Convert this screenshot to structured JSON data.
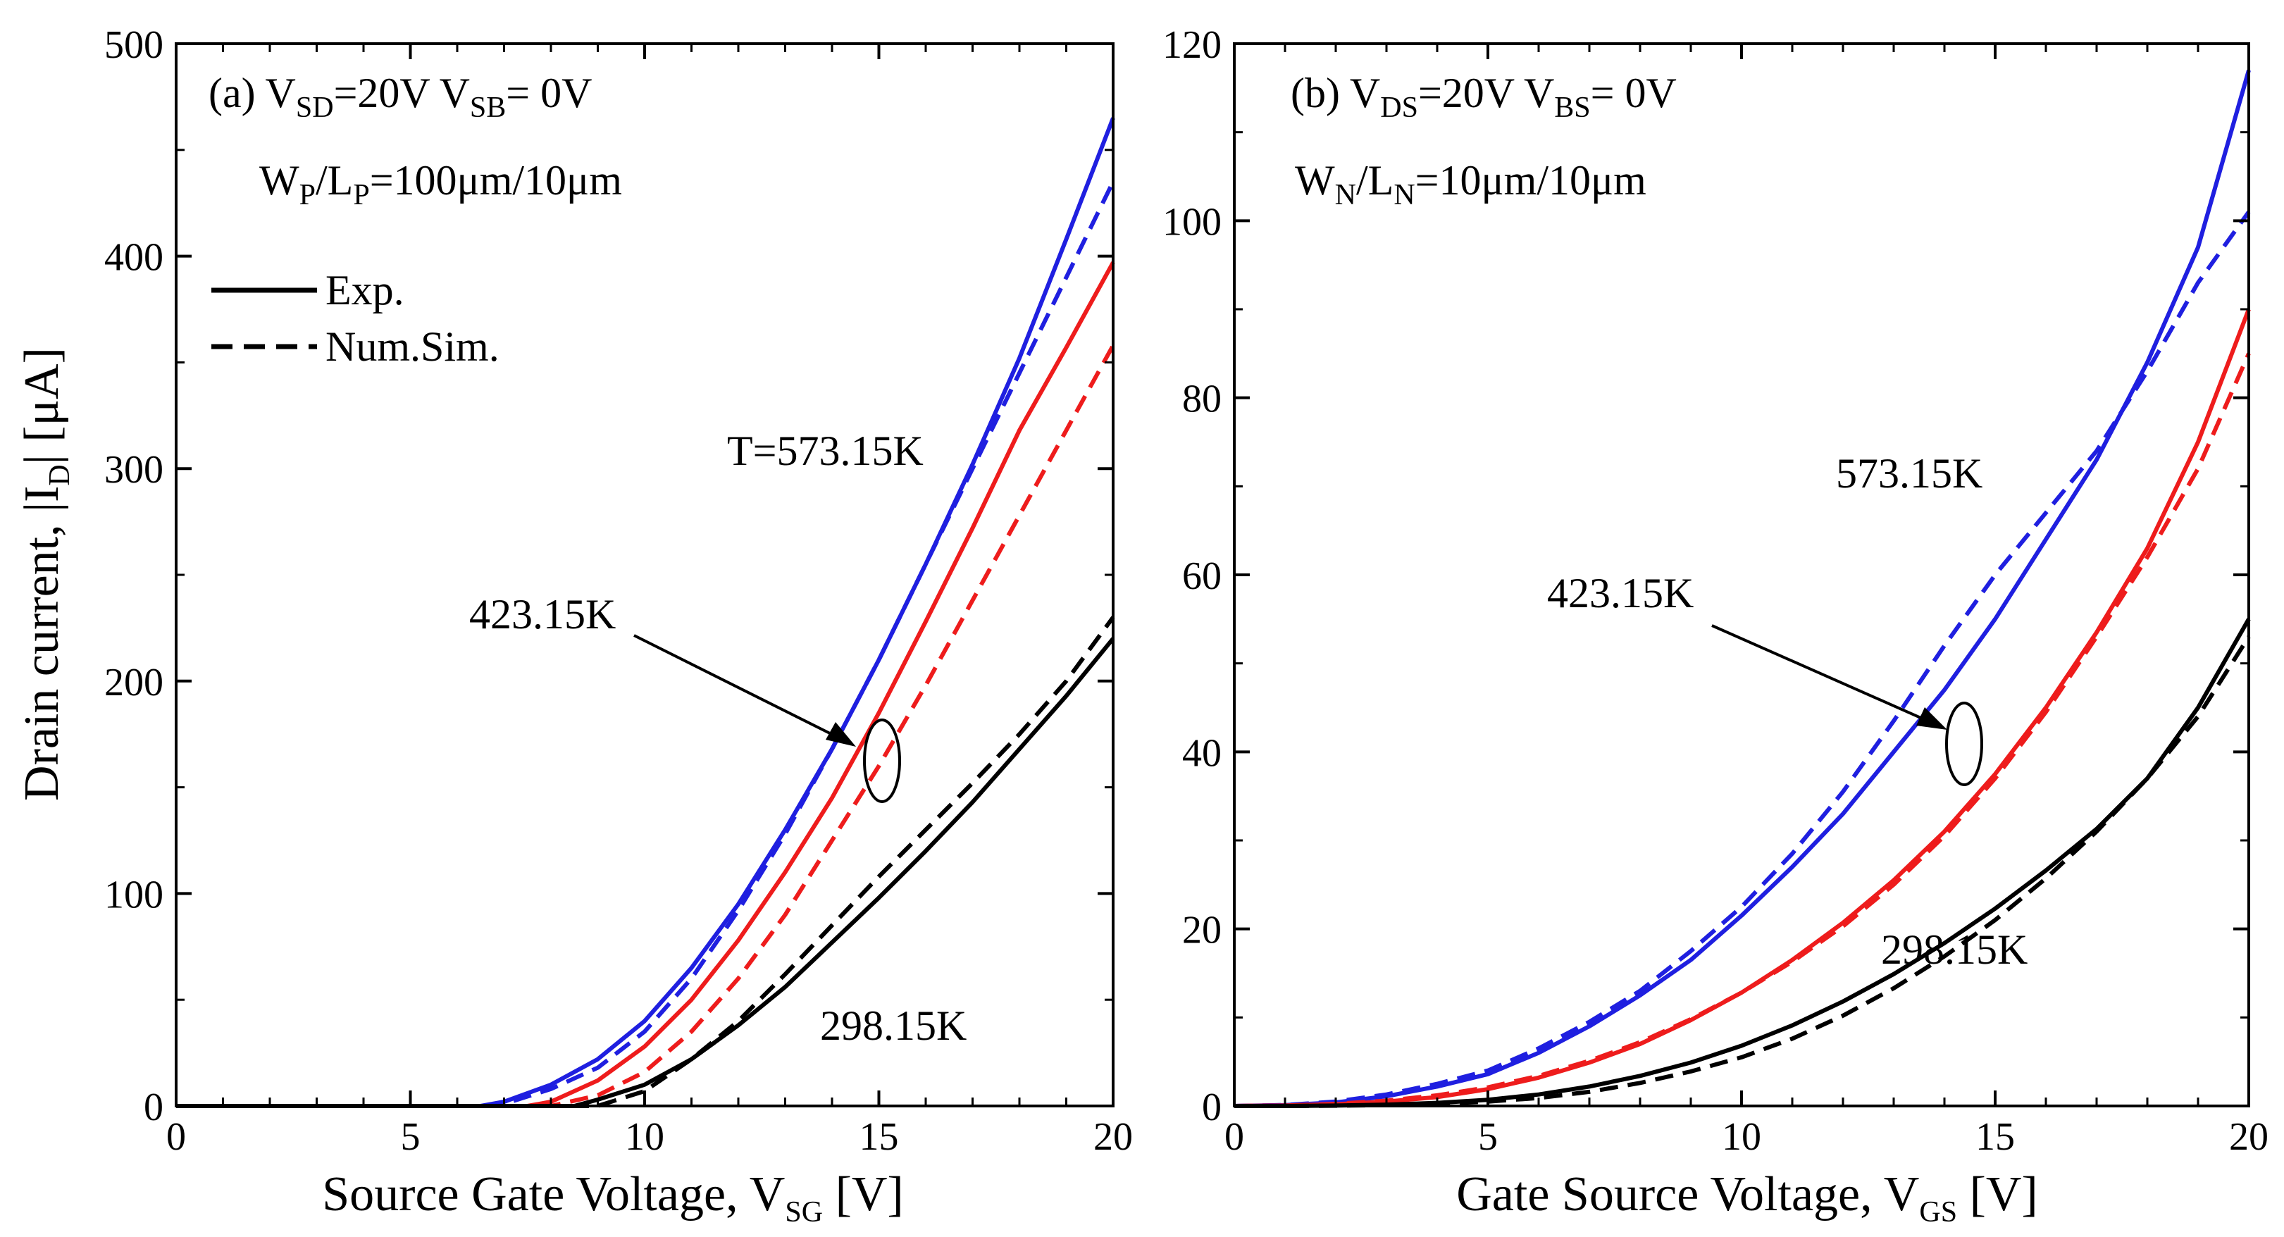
{
  "chart_data": [
    {
      "type": "line",
      "panel": "(a)",
      "bias": {
        "v1_main": "V",
        "v1_sub": "SD",
        "v1_val": "=20V",
        "v2_main": "V",
        "v2_sub": "SB",
        "v2_val": "= 0V"
      },
      "geom": {
        "w_main": "W",
        "w_sub": "P",
        "sep": "/",
        "l_main": "L",
        "l_sub": "P",
        "val": "=100μm/10μm"
      },
      "xlabel": {
        "main": "Source Gate Voltage, V",
        "sub": "SG",
        "unit": " [V]"
      },
      "ylabel": {
        "main": "Drain current, |I",
        "sub": "D",
        "unit": "| [μA]"
      },
      "xlim": [
        0,
        20
      ],
      "ylim": [
        0,
        500
      ],
      "xticks": [
        0,
        5,
        10,
        15,
        20
      ],
      "yticks": [
        0,
        100,
        200,
        300,
        400,
        500
      ],
      "legend": {
        "position": "upper-left",
        "exp": "Exp.",
        "sim": "Num.Sim."
      },
      "labels": {
        "t573": "T=573.15K",
        "t423": "423.15K",
        "t298": "298.15K"
      },
      "series": [
        {
          "name": "573.15K Exp.",
          "color": "#1f1fe0",
          "style": "solid",
          "x": [
            0,
            6.5,
            7,
            8,
            9,
            10,
            11,
            12,
            13,
            14,
            15,
            16,
            17,
            18,
            19,
            20
          ],
          "y": [
            0,
            0,
            2,
            10,
            22,
            40,
            65,
            95,
            130,
            168,
            210,
            255,
            302,
            352,
            408,
            465
          ]
        },
        {
          "name": "573.15K Num.Sim.",
          "color": "#1f1fe0",
          "style": "dashed",
          "x": [
            0,
            6.8,
            7,
            8,
            9,
            10,
            11,
            12,
            13,
            14,
            15,
            16,
            17,
            18,
            19,
            20
          ],
          "y": [
            0,
            0,
            1,
            8,
            18,
            35,
            60,
            92,
            128,
            168,
            210,
            255,
            300,
            345,
            390,
            435
          ]
        },
        {
          "name": "423.15K Exp.",
          "color": "#ee1c1c",
          "style": "solid",
          "x": [
            0,
            7.5,
            8,
            9,
            10,
            11,
            12,
            13,
            14,
            15,
            16,
            17,
            18,
            19,
            20
          ],
          "y": [
            0,
            0,
            2,
            12,
            28,
            50,
            78,
            110,
            145,
            185,
            228,
            272,
            318,
            357,
            397
          ]
        },
        {
          "name": "423.15K Num.Sim.",
          "color": "#ee1c1c",
          "style": "dashed",
          "x": [
            0,
            8,
            9,
            10,
            11,
            12,
            13,
            14,
            15,
            16,
            17,
            18,
            19,
            20
          ],
          "y": [
            0,
            0,
            5,
            16,
            35,
            60,
            90,
            125,
            160,
            198,
            238,
            278,
            318,
            358
          ]
        },
        {
          "name": "298.15K Exp.",
          "color": "#000000",
          "style": "solid",
          "x": [
            0,
            8.5,
            9,
            10,
            11,
            12,
            13,
            14,
            15,
            16,
            17,
            18,
            19,
            20
          ],
          "y": [
            0,
            0,
            3,
            10,
            22,
            38,
            56,
            77,
            98,
            120,
            143,
            168,
            193,
            220
          ]
        },
        {
          "name": "298.15K Num.Sim.",
          "color": "#000000",
          "style": "dashed",
          "x": [
            0,
            9,
            10,
            11,
            12,
            13,
            14,
            15,
            16,
            17,
            18,
            19,
            20
          ],
          "y": [
            0,
            0,
            7,
            22,
            40,
            62,
            85,
            108,
            130,
            152,
            175,
            200,
            230
          ]
        }
      ]
    },
    {
      "type": "line",
      "panel": "(b)",
      "bias": {
        "v1_main": "V",
        "v1_sub": "DS",
        "v1_val": "=20V",
        "v2_main": "V",
        "v2_sub": "BS",
        "v2_val": "= 0V"
      },
      "geom": {
        "w_main": "W",
        "w_sub": "N",
        "sep": "/",
        "l_main": "L",
        "l_sub": "N",
        "val": "=10μm/10μm"
      },
      "xlabel": {
        "main": "Gate Source Voltage, V",
        "sub": "GS",
        "unit": " [V]"
      },
      "xlim": [
        0,
        20
      ],
      "ylim": [
        0,
        120
      ],
      "xticks": [
        0,
        5,
        10,
        15,
        20
      ],
      "yticks": [
        0,
        20,
        40,
        60,
        80,
        100,
        120
      ],
      "labels": {
        "t573": "573.15K",
        "t423": "423.15K",
        "t298": "298.15K"
      },
      "series": [
        {
          "name": "573.15K Exp.",
          "color": "#1f1fe0",
          "style": "solid",
          "x": [
            0,
            1,
            2,
            3,
            4,
            5,
            6,
            7,
            8,
            9,
            10,
            11,
            12,
            13,
            14,
            15,
            16,
            17,
            18,
            19,
            20
          ],
          "y": [
            0,
            0.1,
            0.4,
            1.1,
            2.2,
            3.6,
            6,
            9,
            12.5,
            16.5,
            21.5,
            27,
            33,
            40,
            47,
            55,
            64,
            73,
            84,
            97,
            117
          ]
        },
        {
          "name": "573.15K Num.Sim.",
          "color": "#1f1fe0",
          "style": "dashed",
          "x": [
            0,
            1,
            2,
            3,
            4,
            5,
            6,
            7,
            8,
            9,
            10,
            11,
            12,
            13,
            14,
            15,
            16,
            17,
            18,
            19,
            20
          ],
          "y": [
            0,
            0.1,
            0.5,
            1.3,
            2.5,
            4,
            6.5,
            9.5,
            13,
            17.5,
            22.5,
            28.5,
            35.5,
            43.5,
            52,
            60,
            67,
            74,
            83,
            93,
            101
          ]
        },
        {
          "name": "423.15K Exp.",
          "color": "#ee1c1c",
          "style": "solid",
          "x": [
            0,
            1,
            2,
            3,
            4,
            5,
            6,
            7,
            8,
            9,
            10,
            11,
            12,
            13,
            14,
            15,
            16,
            17,
            18,
            19,
            20
          ],
          "y": [
            0,
            0.05,
            0.2,
            0.5,
            1,
            1.9,
            3.2,
            4.9,
            7,
            9.7,
            12.8,
            16.5,
            20.7,
            25.5,
            31,
            37.5,
            45,
            53.5,
            63,
            75,
            90
          ]
        },
        {
          "name": "423.15K Num.Sim.",
          "color": "#ee1c1c",
          "style": "dashed",
          "x": [
            0,
            1,
            2,
            3,
            4,
            5,
            6,
            7,
            8,
            9,
            10,
            11,
            12,
            13,
            14,
            15,
            16,
            17,
            18,
            19,
            20
          ],
          "y": [
            0,
            0.05,
            0.25,
            0.6,
            1.2,
            2.1,
            3.4,
            5.1,
            7.2,
            9.8,
            12.8,
            16.3,
            20.3,
            25,
            30.5,
            37,
            44.5,
            53,
            62,
            72,
            85
          ]
        },
        {
          "name": "298.15K Exp.",
          "color": "#000000",
          "style": "solid",
          "x": [
            0,
            1,
            2,
            3,
            4,
            5,
            6,
            7,
            8,
            9,
            10,
            11,
            12,
            13,
            14,
            15,
            16,
            17,
            18,
            19,
            20
          ],
          "y": [
            0,
            0,
            0.05,
            0.15,
            0.35,
            0.7,
            1.3,
            2.2,
            3.4,
            4.9,
            6.8,
            9.1,
            11.8,
            14.9,
            18.4,
            22.3,
            26.6,
            31.3,
            37,
            45,
            55
          ]
        },
        {
          "name": "298.15K Num.Sim.",
          "color": "#000000",
          "style": "dashed",
          "x": [
            0,
            1,
            2,
            3,
            4,
            5,
            6,
            7,
            8,
            9,
            10,
            11,
            12,
            13,
            14,
            15,
            16,
            17,
            18,
            19,
            20
          ],
          "y": [
            0,
            0,
            0.03,
            0.1,
            0.25,
            0.5,
            0.9,
            1.6,
            2.6,
            3.9,
            5.5,
            7.6,
            10.2,
            13.3,
            16.9,
            21,
            25.7,
            31,
            37,
            44,
            53
          ]
        }
      ]
    }
  ]
}
